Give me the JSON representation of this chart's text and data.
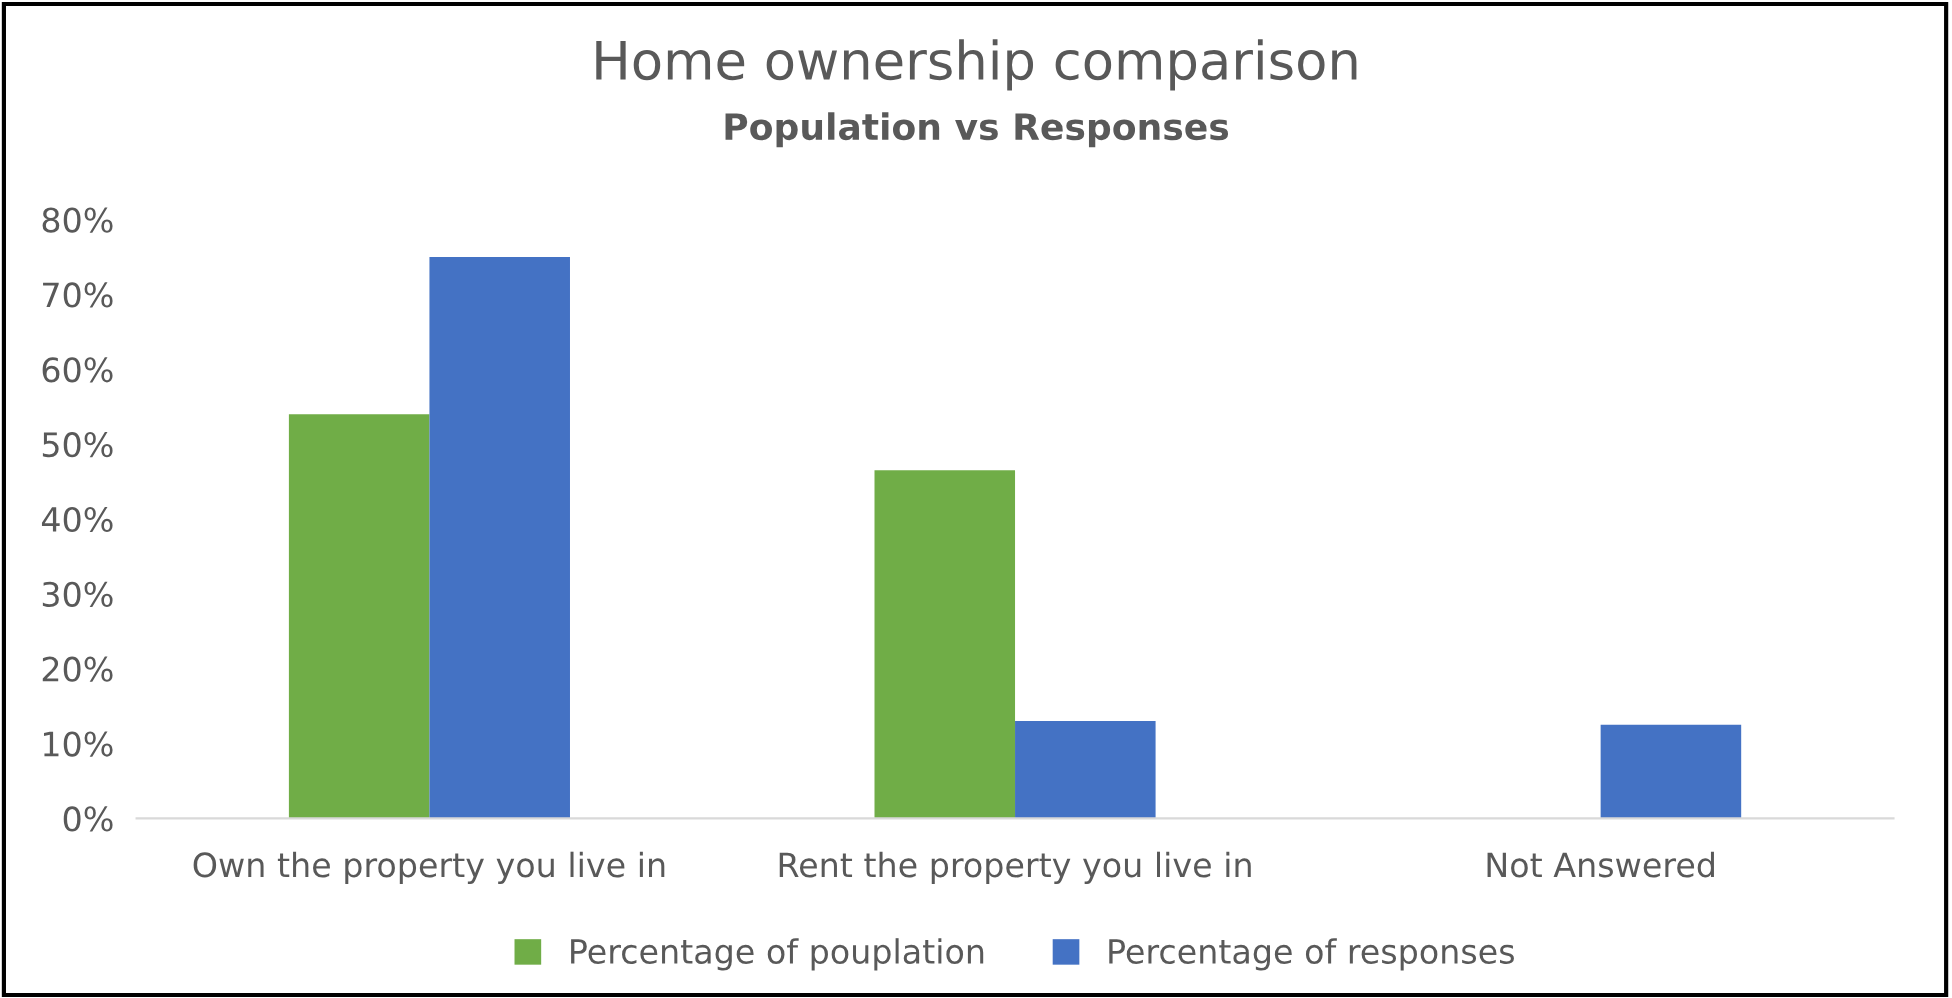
{
  "chart_data": {
    "type": "bar",
    "title": "Home ownership comparison",
    "subtitle": "Population vs Responses",
    "categories": [
      "Own the property you live in",
      "Rent the property you live in",
      "Not Answered"
    ],
    "series": [
      {
        "name": "Percentage of pouplation",
        "color": "#70ad47",
        "values": [
          54,
          46.5,
          0
        ]
      },
      {
        "name": "Percentage of responses",
        "color": "#4472c4",
        "values": [
          75,
          13,
          12.5
        ]
      }
    ],
    "ylim": [
      0,
      80
    ],
    "yticks": [
      {
        "value": 0,
        "label": "0%"
      },
      {
        "value": 10,
        "label": "10%"
      },
      {
        "value": 20,
        "label": "20%"
      },
      {
        "value": 30,
        "label": "30%"
      },
      {
        "value": 40,
        "label": "40%"
      },
      {
        "value": 50,
        "label": "50%"
      },
      {
        "value": 60,
        "label": "60%"
      },
      {
        "value": 70,
        "label": "70%"
      },
      {
        "value": 80,
        "label": "80%"
      }
    ],
    "grid": false,
    "legend": "bottom"
  }
}
